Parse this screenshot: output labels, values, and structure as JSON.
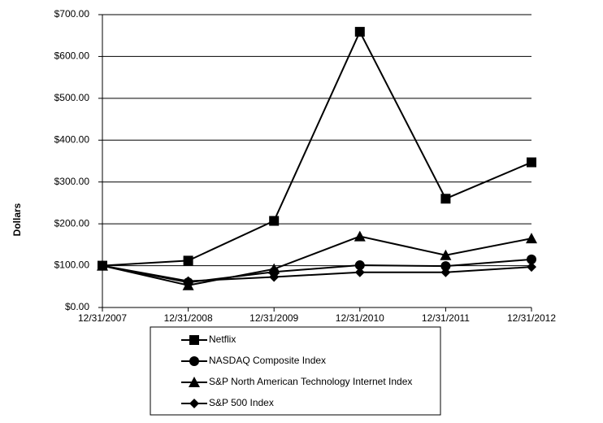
{
  "chart_data": {
    "type": "line",
    "y_label": "Dollars",
    "categories": [
      "12/31/2007",
      "12/31/2008",
      "12/31/2009",
      "12/31/2010",
      "12/31/2011",
      "12/31/2012"
    ],
    "series": [
      {
        "name": "Netflix",
        "color": "#000000",
        "marker": "square",
        "values": [
          100,
          112,
          207,
          659,
          260,
          347
        ]
      },
      {
        "name": "NASDAQ Composite Index",
        "color": "#000000",
        "marker": "circle",
        "values": [
          100,
          60,
          85,
          101,
          99,
          115
        ]
      },
      {
        "name": "S&P North American Technology Internet Index",
        "color": "#000000",
        "marker": "triangle",
        "values": [
          100,
          53,
          92,
          170,
          125,
          165
        ]
      },
      {
        "name": "S&P 500 Index",
        "color": "#000000",
        "marker": "diamond",
        "values": [
          100,
          63,
          73,
          84,
          84,
          97
        ]
      }
    ],
    "ylim": [
      0,
      700
    ],
    "yticks": [
      {
        "value": 0,
        "label": "$0.00"
      },
      {
        "value": 100,
        "label": "$100.00"
      },
      {
        "value": 200,
        "label": "$200.00"
      },
      {
        "value": 300,
        "label": "$300.00"
      },
      {
        "value": 400,
        "label": "$400.00"
      },
      {
        "value": 500,
        "label": "$500.00"
      },
      {
        "value": 600,
        "label": "$600.00"
      },
      {
        "value": 700,
        "label": "$700.00"
      }
    ],
    "grid": true,
    "legend": "bottom"
  }
}
